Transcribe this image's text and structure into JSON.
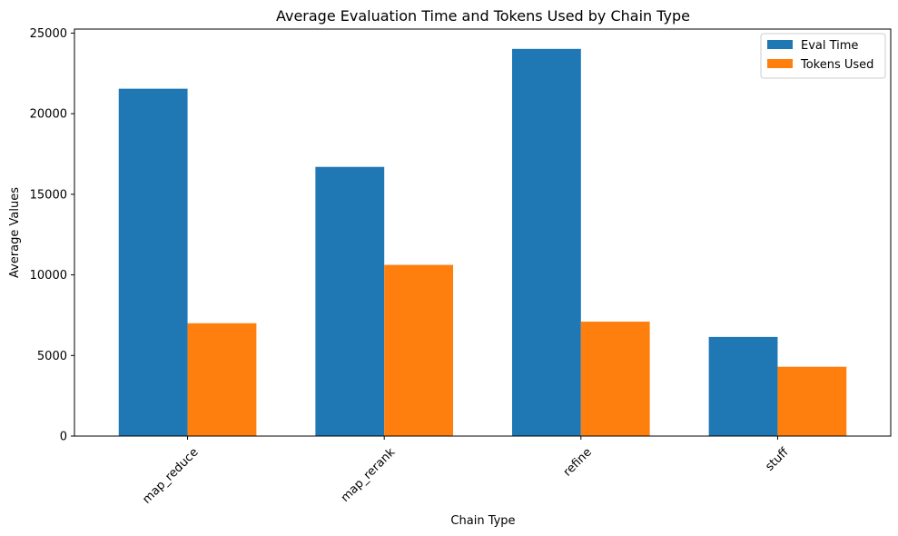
{
  "chart_data": {
    "type": "bar",
    "title": "Average Evaluation Time and Tokens Used by Chain Type",
    "xlabel": "Chain Type",
    "ylabel": "Average Values",
    "categories": [
      "map_reduce",
      "map_rerank",
      "refine",
      "stuff"
    ],
    "series": [
      {
        "name": "Eval Time",
        "color": "#1f77b4",
        "values": [
          21550,
          16700,
          24020,
          6150
        ]
      },
      {
        "name": "Tokens Used",
        "color": "#ff7f0e",
        "values": [
          7000,
          10620,
          7100,
          4300
        ]
      }
    ],
    "ylim": [
      0,
      25250
    ],
    "yticks": [
      0,
      5000,
      10000,
      15000,
      20000,
      25000
    ],
    "ytick_labels": [
      "0",
      "5000",
      "10000",
      "15000",
      "20000",
      "25000"
    ],
    "grid": false,
    "legend_position": "top-right",
    "xtick_rotation": "45"
  }
}
